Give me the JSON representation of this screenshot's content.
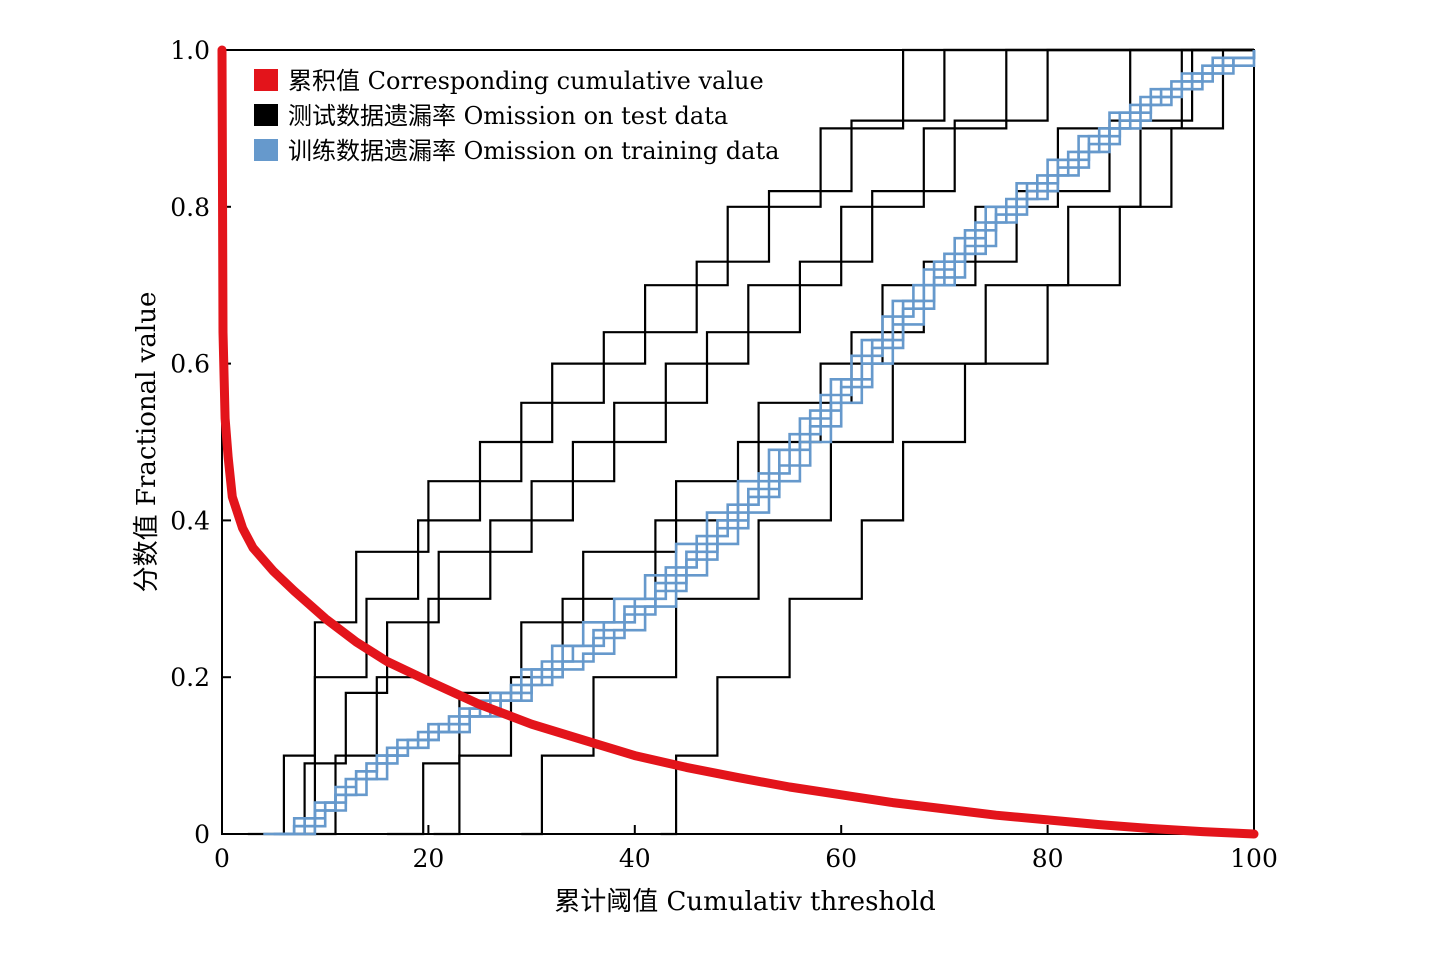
{
  "chart_data": {
    "type": "line",
    "xlabel": "累计阈值 Cumulativ threshold",
    "ylabel": "分数值 Fractional value",
    "xlim": [
      0,
      100
    ],
    "ylim": [
      0,
      1
    ],
    "x_ticks": [
      0,
      20,
      40,
      60,
      80,
      100
    ],
    "x_tick_labels": [
      "0",
      "20",
      "40",
      "60",
      "80",
      "100"
    ],
    "y_ticks": [
      0,
      0.2,
      0.4,
      0.6,
      0.8,
      1.0
    ],
    "y_tick_labels": [
      "0",
      "0.2",
      "0.4",
      "0.6",
      "0.8",
      "1.0"
    ],
    "legend": [
      {
        "label": "累积值 Corresponding cumulative value",
        "color": "#e3141b"
      },
      {
        "label": "测试数据遗漏率 Omission on test data",
        "color": "#000000"
      },
      {
        "label": "训练数据遗漏率 Omission on training data",
        "color": "#6699cc"
      }
    ],
    "legend_position": "top-left",
    "series": [
      {
        "name": "累积值 Corresponding cumulative value",
        "color": "#e3141b",
        "x": [
          0,
          0.1,
          0.3,
          0.6,
          1,
          2,
          3,
          5,
          7,
          10,
          13,
          16,
          20,
          25,
          30,
          35,
          40,
          45,
          50,
          55,
          60,
          65,
          70,
          75,
          80,
          85,
          90,
          95,
          100
        ],
        "y": [
          1.0,
          0.64,
          0.53,
          0.48,
          0.43,
          0.39,
          0.365,
          0.335,
          0.31,
          0.275,
          0.245,
          0.22,
          0.195,
          0.165,
          0.14,
          0.12,
          0.1,
          0.085,
          0.072,
          0.06,
          0.05,
          0.04,
          0.032,
          0.024,
          0.018,
          0.012,
          0.007,
          0.003,
          0.0
        ]
      },
      {
        "name": "训练数据遗漏率 Omission on training data",
        "color": "#6699cc",
        "runs": [
          {
            "x": [
              4,
              7,
              9,
              11,
              13,
              15,
              17,
              20,
              23,
              26,
              29,
              32,
              35,
              38,
              41,
              44,
              47,
              50,
              53,
              56,
              59,
              62,
              65,
              68,
              71,
              74,
              77,
              80,
              83,
              86,
              89,
              92,
              95,
              98,
              100
            ],
            "y": [
              0,
              0.01,
              0.03,
              0.05,
              0.07,
              0.09,
              0.11,
              0.13,
              0.15,
              0.17,
              0.19,
              0.21,
              0.23,
              0.26,
              0.29,
              0.33,
              0.37,
              0.41,
              0.45,
              0.5,
              0.55,
              0.6,
              0.65,
              0.7,
              0.74,
              0.78,
              0.81,
              0.84,
              0.87,
              0.9,
              0.93,
              0.95,
              0.97,
              0.99,
              0.99
            ]
          },
          {
            "x": [
              5,
              7,
              9,
              11,
              13,
              15,
              18,
              21,
              24,
              27,
              30,
              33,
              36,
              39,
              42,
              45,
              48,
              51,
              54,
              57,
              60,
              63,
              66,
              69,
              72,
              75,
              78,
              81,
              84,
              87,
              90,
              93,
              96,
              100
            ],
            "y": [
              0,
              0.02,
              0.04,
              0.06,
              0.08,
              0.1,
              0.12,
              0.14,
              0.16,
              0.18,
              0.2,
              0.22,
              0.25,
              0.28,
              0.31,
              0.35,
              0.39,
              0.43,
              0.47,
              0.52,
              0.57,
              0.62,
              0.67,
              0.71,
              0.75,
              0.79,
              0.82,
              0.85,
              0.88,
              0.91,
              0.94,
              0.96,
              0.98,
              1.0
            ]
          },
          {
            "x": [
              6,
              8,
              10,
              12,
              14,
              16,
              19,
              22,
              25,
              28,
              31,
              34,
              37,
              40,
              43,
              46,
              49,
              52,
              55,
              58,
              61,
              64,
              67,
              70,
              73,
              76,
              79,
              82,
              85,
              88,
              91,
              94,
              97,
              100
            ],
            "y": [
              0,
              0.02,
              0.04,
              0.07,
              0.09,
              0.11,
              0.13,
              0.15,
              0.17,
              0.19,
              0.22,
              0.24,
              0.27,
              0.3,
              0.34,
              0.38,
              0.42,
              0.46,
              0.51,
              0.56,
              0.61,
              0.66,
              0.7,
              0.74,
              0.78,
              0.81,
              0.84,
              0.87,
              0.9,
              0.93,
              0.95,
              0.97,
              0.99,
              1.0
            ]
          },
          {
            "x": [
              7,
              9,
              11,
              13,
              15,
              17,
              20,
              23,
              26,
              29,
              32,
              35,
              38,
              41,
              44,
              47,
              50,
              53,
              56,
              59,
              62,
              65,
              68,
              71,
              74,
              77,
              80,
              83,
              86,
              89,
              92,
              95,
              98,
              100
            ],
            "y": [
              0,
              0.03,
              0.05,
              0.08,
              0.1,
              0.12,
              0.14,
              0.16,
              0.18,
              0.21,
              0.24,
              0.27,
              0.3,
              0.33,
              0.37,
              0.41,
              0.45,
              0.49,
              0.53,
              0.58,
              0.63,
              0.68,
              0.72,
              0.76,
              0.8,
              0.83,
              0.86,
              0.89,
              0.92,
              0.94,
              0.96,
              0.98,
              0.99,
              1.0
            ]
          },
          {
            "x": [
              5,
              7,
              10,
              12,
              14,
              16,
              18,
              21,
              24,
              27,
              30,
              33,
              36,
              39,
              42,
              45,
              48,
              51,
              54,
              57,
              60,
              63,
              66,
              69,
              72,
              75,
              78,
              81,
              84,
              87,
              90,
              93,
              96,
              100
            ],
            "y": [
              0,
              0.01,
              0.03,
              0.05,
              0.07,
              0.1,
              0.12,
              0.13,
              0.15,
              0.17,
              0.21,
              0.24,
              0.26,
              0.29,
              0.32,
              0.36,
              0.4,
              0.44,
              0.49,
              0.54,
              0.58,
              0.63,
              0.68,
              0.73,
              0.77,
              0.8,
              0.83,
              0.86,
              0.89,
              0.92,
              0.95,
              0.97,
              0.99,
              1.0
            ]
          }
        ]
      },
      {
        "name": "测试数据遗漏率 Omission on test data",
        "color": "#000000",
        "runs": [
          {
            "x": [
              2.5,
              6,
              9,
              13,
              20,
              29,
              37,
              46,
              53,
              61,
              70,
              79,
              88,
              94,
              100
            ],
            "y": [
              0,
              0.1,
              0.27,
              0.36,
              0.45,
              0.55,
              0.64,
              0.73,
              0.82,
              0.91,
              1.0,
              1.0,
              1.0,
              1.0,
              1.0
            ]
          },
          {
            "x": [
              5.5,
              8,
              12,
              16,
              21,
              30,
              38,
              47,
              56,
              63,
              71,
              80,
              89,
              96,
              100
            ],
            "y": [
              0,
              0.09,
              0.18,
              0.27,
              0.36,
              0.45,
              0.55,
              0.64,
              0.73,
              0.82,
              0.91,
              1.0,
              1.0,
              1.0,
              1.0
            ]
          },
          {
            "x": [
              6,
              9,
              14,
              19,
              25,
              32,
              41,
              49,
              58,
              66,
              74,
              82,
              90,
              100
            ],
            "y": [
              0,
              0.2,
              0.3,
              0.4,
              0.5,
              0.6,
              0.7,
              0.8,
              0.9,
              1.0,
              1.0,
              1.0,
              1.0,
              1.0
            ]
          },
          {
            "x": [
              8,
              11,
              15,
              20,
              26,
              34,
              43,
              51,
              60,
              68,
              76,
              84,
              92,
              100
            ],
            "y": [
              0,
              0.1,
              0.2,
              0.3,
              0.4,
              0.5,
              0.6,
              0.7,
              0.8,
              0.9,
              1.0,
              1.0,
              1.0,
              1.0
            ]
          },
          {
            "x": [
              16,
              19.5,
              23,
              29,
              35,
              44,
              52,
              61,
              68,
              77,
              86,
              94,
              100
            ],
            "y": [
              0,
              0.09,
              0.18,
              0.27,
              0.36,
              0.45,
              0.55,
              0.64,
              0.73,
              0.82,
              0.91,
              1.0,
              1.0
            ]
          },
          {
            "x": [
              20.5,
              23,
              28,
              33,
              42,
              50,
              58,
              64,
              73,
              81,
              88,
              95,
              100
            ],
            "y": [
              0,
              0.1,
              0.2,
              0.3,
              0.4,
              0.5,
              0.6,
              0.7,
              0.8,
              0.9,
              1.0,
              1.0,
              1.0
            ]
          },
          {
            "x": [
              29,
              31,
              36,
              44,
              52,
              59,
              65,
              74,
              82,
              89,
              93,
              100
            ],
            "y": [
              0,
              0.1,
              0.2,
              0.3,
              0.4,
              0.5,
              0.6,
              0.7,
              0.8,
              0.9,
              1.0,
              1.0
            ]
          },
          {
            "x": [
              42.5,
              44,
              48,
              55,
              62,
              66,
              72,
              80,
              87,
              92,
              97,
              100
            ],
            "y": [
              0,
              0.1,
              0.2,
              0.3,
              0.4,
              0.5,
              0.6,
              0.7,
              0.8,
              0.9,
              1.0,
              1.0
            ]
          }
        ]
      }
    ]
  }
}
